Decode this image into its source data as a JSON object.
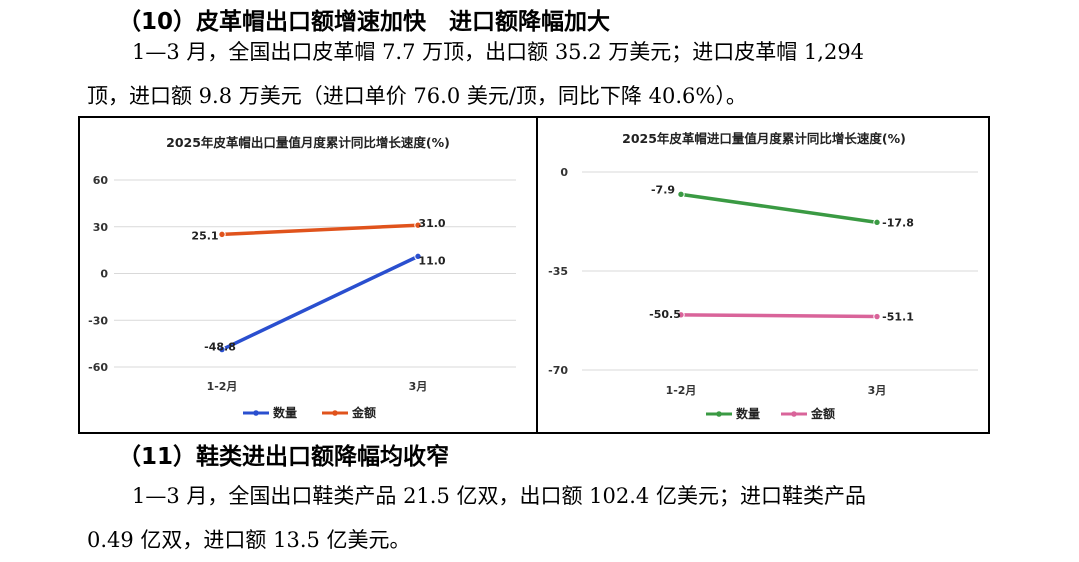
{
  "section10": {
    "heading": "（10）皮革帽出口额增速加快　进口额降幅加大",
    "line1": "1—3 月，全国出口皮革帽 7.7 万顶，出口额 35.2 万美元；进口皮革帽 1,294",
    "line2": "顶，进口额 9.8 万美元（进口单价 76.0 美元/顶，同比下降 40.6%）。"
  },
  "section11": {
    "heading": "（11）鞋类进出口额降幅均收窄",
    "line1": "1—3 月，全国出口鞋类产品 21.5 亿双，出口额 102.4 亿美元；进口鞋类产品",
    "line2": "0.49 亿双，进口额 13.5 亿美元。"
  },
  "chart_data": [
    {
      "type": "line",
      "title": "2025年皮革帽出口量值月度累计同比增长速度(%)",
      "categories": [
        "1-2月",
        "3月"
      ],
      "ylim": [
        -60,
        60
      ],
      "yticks": [
        60,
        30,
        0,
        -30,
        -60
      ],
      "grid": true,
      "legend": "bottom",
      "series": [
        {
          "name": "数量",
          "color": "#2a4fcf",
          "values": [
            -48.8,
            11.0
          ],
          "labels": [
            "-48.8",
            "11.0"
          ]
        },
        {
          "name": "金额",
          "color": "#e0531c",
          "values": [
            25.1,
            31.0
          ],
          "labels": [
            "25.1",
            "31.0"
          ]
        }
      ]
    },
    {
      "type": "line",
      "title": "2025年皮革帽进口量值月度累计同比增长速度(%)",
      "categories": [
        "1-2月",
        "3月"
      ],
      "ylim": [
        -70,
        0
      ],
      "yticks": [
        0,
        -35,
        -70
      ],
      "grid": true,
      "legend": "bottom",
      "series": [
        {
          "name": "数量",
          "color": "#3a9a43",
          "values": [
            -7.9,
            -17.8
          ],
          "labels": [
            "-7.9",
            "-17.8"
          ]
        },
        {
          "name": "金额",
          "color": "#d9649a",
          "values": [
            -50.5,
            -51.1
          ],
          "labels": [
            "-50.5",
            "-51.1"
          ]
        }
      ]
    }
  ]
}
